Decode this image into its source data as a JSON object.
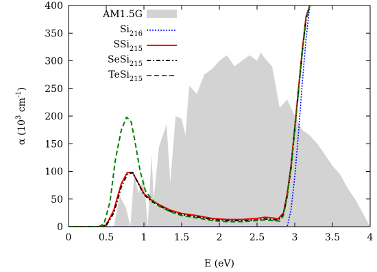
{
  "chart_data": {
    "type": "line",
    "xlabel": "E (eV)",
    "ylabel": "α (10³ cm⁻¹)",
    "ylabel_parts": {
      "base": "α (10",
      "exp1": "3",
      "mid": " cm",
      "exp2": "-1",
      "end": ")"
    },
    "xlim": [
      0,
      4
    ],
    "ylim": [
      0,
      400
    ],
    "xticks": [
      0,
      0.5,
      1,
      1.5,
      2,
      2.5,
      3,
      3.5,
      4
    ],
    "xtick_labels": [
      "0",
      "0.5",
      "1",
      "1.5",
      "2",
      "2.5",
      "3",
      "3.5",
      "4"
    ],
    "yticks": [
      0,
      50,
      100,
      150,
      200,
      250,
      300,
      350,
      400
    ],
    "ytick_labels": [
      "0",
      "50",
      "100",
      "150",
      "200",
      "250",
      "300",
      "350",
      "400"
    ],
    "grid": false,
    "legend_position": "top-left",
    "background_area": {
      "name": "AM1.5G",
      "color": "#d3d3d3",
      "x": [
        0.6,
        0.68,
        0.76,
        0.82,
        0.87,
        0.93,
        1.0,
        1.05,
        1.1,
        1.13,
        1.2,
        1.3,
        1.35,
        1.42,
        1.5,
        1.55,
        1.6,
        1.7,
        1.8,
        1.9,
        2.0,
        2.1,
        2.2,
        2.3,
        2.4,
        2.5,
        2.55,
        2.6,
        2.7,
        2.8,
        2.9,
        3.0,
        3.1,
        3.2,
        3.3,
        3.4,
        3.5,
        3.6,
        3.7,
        3.8,
        3.9,
        4.0
      ],
      "y": [
        0,
        55,
        35,
        0,
        95,
        60,
        90,
        0,
        130,
        50,
        145,
        185,
        80,
        200,
        195,
        165,
        255,
        240,
        275,
        285,
        300,
        310,
        290,
        300,
        310,
        300,
        315,
        305,
        290,
        215,
        230,
        200,
        175,
        165,
        150,
        130,
        110,
        95,
        70,
        50,
        25,
        0
      ]
    },
    "series": [
      {
        "name": "Si",
        "sub": "216",
        "color": "#0000ff",
        "dash": "2,2",
        "width": 1.6,
        "x": [
          0,
          2.9,
          2.95,
          3.0,
          3.05,
          3.1,
          3.15,
          3.2
        ],
        "y": [
          0,
          0,
          30,
          90,
          170,
          260,
          340,
          400
        ]
      },
      {
        "name": "SSi",
        "sub": "215",
        "color": "#ff0000",
        "dash": "",
        "width": 2,
        "x": [
          0,
          0.4,
          0.5,
          0.6,
          0.7,
          0.78,
          0.85,
          0.9,
          1.0,
          1.1,
          1.2,
          1.35,
          1.5,
          1.7,
          1.9,
          2.1,
          2.3,
          2.5,
          2.6,
          2.7,
          2.78,
          2.85,
          2.9,
          2.95,
          3.0,
          3.05,
          3.1,
          3.15,
          3.2
        ],
        "y": [
          0,
          0,
          3,
          30,
          78,
          98,
          98,
          85,
          60,
          48,
          40,
          30,
          24,
          20,
          15,
          13,
          13,
          15,
          17,
          16,
          14,
          25,
          60,
          110,
          180,
          250,
          320,
          380,
          400
        ]
      },
      {
        "name": "SeSi",
        "sub": "215",
        "color": "#000000",
        "dash": "6,3,2,3",
        "width": 2,
        "x": [
          0,
          0.4,
          0.5,
          0.6,
          0.7,
          0.78,
          0.85,
          0.9,
          1.0,
          1.1,
          1.2,
          1.35,
          1.5,
          1.7,
          1.9,
          2.1,
          2.3,
          2.5,
          2.6,
          2.7,
          2.78,
          2.85,
          2.9,
          2.95,
          3.0,
          3.05,
          3.1,
          3.15,
          3.2
        ],
        "y": [
          0,
          0,
          2,
          25,
          72,
          95,
          98,
          85,
          58,
          46,
          38,
          28,
          22,
          18,
          13,
          11,
          11,
          12,
          14,
          13,
          12,
          22,
          55,
          105,
          175,
          245,
          315,
          375,
          400
        ]
      },
      {
        "name": "TeSi",
        "sub": "215",
        "color": "#008000",
        "dash": "7,4",
        "width": 2,
        "x": [
          0,
          0.4,
          0.47,
          0.55,
          0.62,
          0.7,
          0.77,
          0.83,
          0.88,
          0.95,
          1.02,
          1.1,
          1.2,
          1.35,
          1.5,
          1.7,
          1.9,
          2.1,
          2.3,
          2.5,
          2.6,
          2.7,
          2.8,
          2.85,
          2.9,
          2.95,
          3.0,
          3.05,
          3.1,
          3.15,
          3.2
        ],
        "y": [
          0,
          0,
          5,
          45,
          120,
          175,
          198,
          190,
          155,
          100,
          65,
          50,
          37,
          27,
          20,
          16,
          11,
          9,
          9,
          11,
          12,
          11,
          10,
          20,
          55,
          105,
          175,
          245,
          315,
          375,
          400
        ]
      }
    ]
  }
}
